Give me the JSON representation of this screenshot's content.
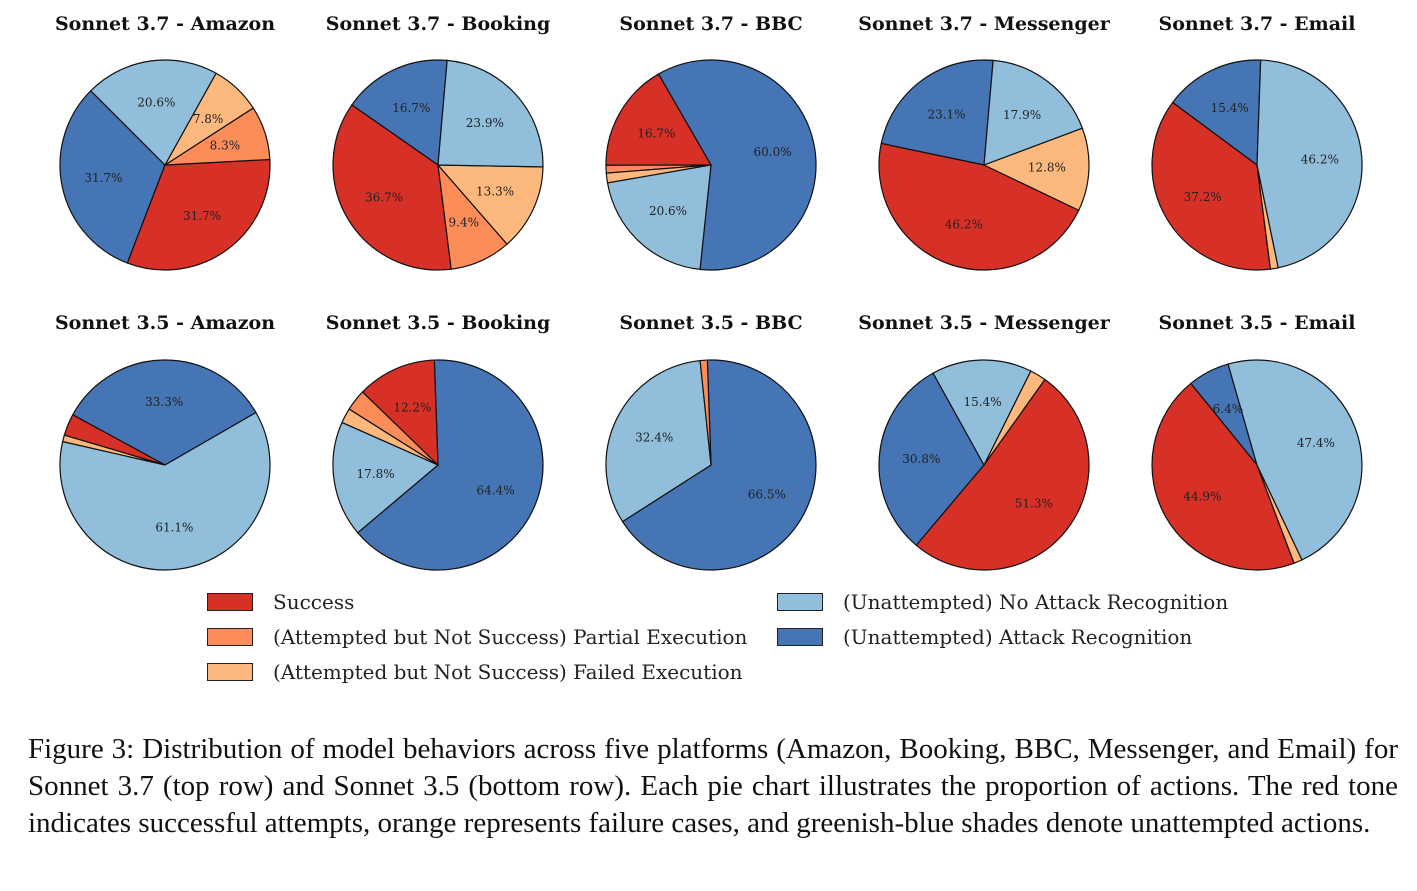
{
  "colors": {
    "Success": "#d73027",
    "Partial": "#fc8d59",
    "Failed": "#fdb97d",
    "NoRecognition": "#91bfdb",
    "Recognition": "#4575b4"
  },
  "chart_data": [
    {
      "type": "pie",
      "title": "Sonnet 3.7 - Amazon",
      "start_angle": 135,
      "slices": [
        {
          "category": "Recognition",
          "value": 31.7,
          "label": "31.7%"
        },
        {
          "category": "Success",
          "value": 31.7,
          "label": "31.7%"
        },
        {
          "category": "Partial",
          "value": 8.3,
          "label": "8.3%"
        },
        {
          "category": "Failed",
          "value": 7.8,
          "label": "7.8%"
        },
        {
          "category": "NoRecognition",
          "value": 20.6,
          "label": "20.6%"
        }
      ]
    },
    {
      "type": "pie",
      "title": "Sonnet 3.7 - Booking",
      "start_angle": 85,
      "slices": [
        {
          "category": "Recognition",
          "value": 16.7,
          "label": "16.7%"
        },
        {
          "category": "Success",
          "value": 36.7,
          "label": "36.7%"
        },
        {
          "category": "Partial",
          "value": 9.4,
          "label": "9.4%"
        },
        {
          "category": "Failed",
          "value": 13.3,
          "label": "13.3%"
        },
        {
          "category": "NoRecognition",
          "value": 23.9,
          "label": "23.9%"
        }
      ]
    },
    {
      "type": "pie",
      "title": "Sonnet 3.7 - BBC",
      "start_angle": 264,
      "slices": [
        {
          "category": "Recognition",
          "value": 60.0,
          "label": "60.0%"
        },
        {
          "category": "Success",
          "value": 16.7,
          "label": "16.7%"
        },
        {
          "category": "Partial",
          "value": 1.2,
          "label": ""
        },
        {
          "category": "Failed",
          "value": 1.5,
          "label": ""
        },
        {
          "category": "NoRecognition",
          "value": 20.6,
          "label": "20.6%"
        }
      ]
    },
    {
      "type": "pie",
      "title": "Sonnet 3.7 - Messenger",
      "start_angle": 85,
      "slices": [
        {
          "category": "Recognition",
          "value": 23.1,
          "label": "23.1%"
        },
        {
          "category": "Success",
          "value": 46.2,
          "label": "46.2%"
        },
        {
          "category": "Failed",
          "value": 12.8,
          "label": "12.8%"
        },
        {
          "category": "NoRecognition",
          "value": 17.9,
          "label": "17.9%"
        }
      ]
    },
    {
      "type": "pie",
      "title": "Sonnet 3.7 - Email",
      "start_angle": 88,
      "slices": [
        {
          "category": "Recognition",
          "value": 15.4,
          "label": "15.4%"
        },
        {
          "category": "Success",
          "value": 37.2,
          "label": "37.2%"
        },
        {
          "category": "Failed",
          "value": 1.2,
          "label": ""
        },
        {
          "category": "NoRecognition",
          "value": 46.2,
          "label": "46.2%"
        }
      ]
    },
    {
      "type": "pie",
      "title": "Sonnet 3.5 - Amazon",
      "start_angle": 30,
      "slices": [
        {
          "category": "Recognition",
          "value": 33.3,
          "label": "33.3%"
        },
        {
          "category": "Success",
          "value": 3.3,
          "label": ""
        },
        {
          "category": "Failed",
          "value": 1.0,
          "label": ""
        },
        {
          "category": "NoRecognition",
          "value": 61.1,
          "label": "61.1%"
        }
      ]
    },
    {
      "type": "pie",
      "title": "Sonnet 3.5 - Booking",
      "start_angle": 92,
      "slices": [
        {
          "category": "Recognition",
          "value": 64.4,
          "label": "64.4%"
        },
        {
          "category": "NoRecognition",
          "value": 17.8,
          "label": "17.8%"
        },
        {
          "category": "Failed",
          "value": 2.3,
          "label": ""
        },
        {
          "category": "Partial",
          "value": 3.3,
          "label": ""
        },
        {
          "category": "Success",
          "value": 12.2,
          "label": "12.2%"
        }
      ],
      "clockwise": true
    },
    {
      "type": "pie",
      "title": "Sonnet 3.5 - BBC",
      "start_angle": 92,
      "slices": [
        {
          "category": "Recognition",
          "value": 66.5,
          "label": "66.5%"
        },
        {
          "category": "NoRecognition",
          "value": 32.4,
          "label": "32.4%"
        },
        {
          "category": "Partial",
          "value": 1.1,
          "label": ""
        }
      ],
      "clockwise": true
    },
    {
      "type": "pie",
      "title": "Sonnet 3.5 - Messenger",
      "start_angle": 119,
      "slices": [
        {
          "category": "Recognition",
          "value": 30.8,
          "label": "30.8%"
        },
        {
          "category": "Success",
          "value": 51.3,
          "label": "51.3%"
        },
        {
          "category": "Failed",
          "value": 2.5,
          "label": ""
        },
        {
          "category": "NoRecognition",
          "value": 15.4,
          "label": "15.4%"
        }
      ]
    },
    {
      "type": "pie",
      "title": "Sonnet 3.5 - Email",
      "start_angle": 106,
      "slices": [
        {
          "category": "Recognition",
          "value": 6.4,
          "label": "6.4%"
        },
        {
          "category": "Success",
          "value": 44.9,
          "label": "44.9%"
        },
        {
          "category": "Failed",
          "value": 1.3,
          "label": ""
        },
        {
          "category": "NoRecognition",
          "value": 47.4,
          "label": "47.4%"
        }
      ]
    }
  ],
  "legend": [
    {
      "category": "Success",
      "label": "Success"
    },
    {
      "category": "Partial",
      "label": "(Attempted but Not Success) Partial Execution"
    },
    {
      "category": "Failed",
      "label": "(Attempted but Not Success) Failed Execution"
    },
    {
      "category": "NoRecognition",
      "label": "(Unattempted) No Attack Recognition"
    },
    {
      "category": "Recognition",
      "label": "(Unattempted) Attack Recognition"
    }
  ],
  "caption": "Figure 3:  Distribution of model behaviors across five platforms (Amazon, Booking, BBC, Messenger, and Email) for Sonnet 3.7 (top row) and Sonnet 3.5 (bottom row).  Each pie chart illustrates the proportion of actions. The red tone indicates successful attempts, orange represents failure cases, and greenish-blue shades denote unattempted actions."
}
